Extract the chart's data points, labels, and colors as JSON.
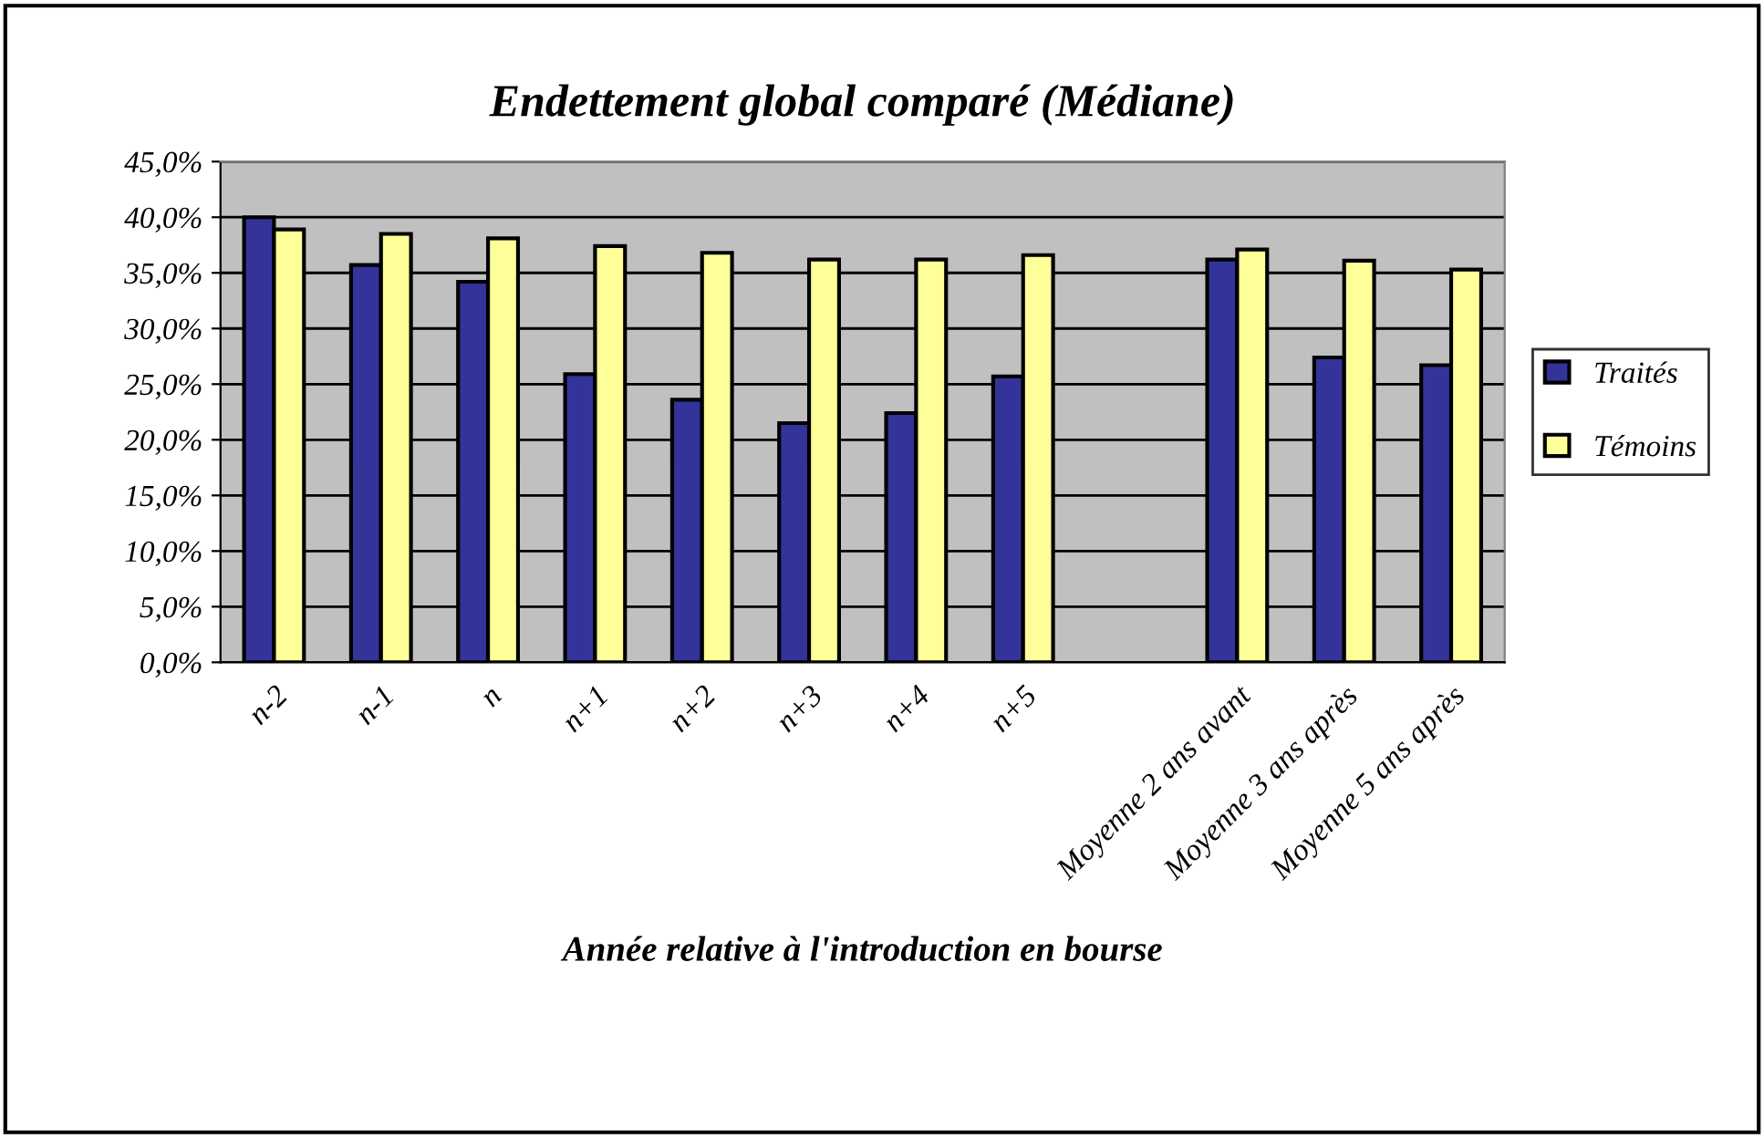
{
  "chart_data": {
    "type": "bar",
    "title": "Endettement global comparé (Médiane)",
    "xlabel": "Année relative à l'introduction en bourse",
    "categories": [
      "n-2",
      "n-1",
      "n",
      "n+1",
      "n+2",
      "n+3",
      "n+4",
      "n+5",
      null,
      "Moyenne 2 ans avant",
      "Moyenne 3 ans après",
      "Moyenne 5 ans après"
    ],
    "series": [
      {
        "name": "Traités",
        "color": "#333399",
        "values": [
          40.0,
          35.7,
          34.2,
          25.9,
          23.6,
          21.5,
          22.4,
          25.7,
          null,
          36.2,
          27.4,
          26.7
        ]
      },
      {
        "name": "Témoins",
        "color": "#ffff99",
        "values": [
          38.9,
          38.5,
          38.1,
          37.4,
          36.8,
          36.2,
          36.2,
          36.6,
          null,
          37.1,
          36.1,
          35.3
        ]
      }
    ],
    "ylim": [
      0,
      45
    ],
    "yticks": [
      {
        "value": 0,
        "label": "0,0%"
      },
      {
        "value": 5,
        "label": "5,0%"
      },
      {
        "value": 10,
        "label": "10,0%"
      },
      {
        "value": 15,
        "label": "15,0%"
      },
      {
        "value": 20,
        "label": "20,0%"
      },
      {
        "value": 25,
        "label": "25,0%"
      },
      {
        "value": 30,
        "label": "30,0%"
      },
      {
        "value": 35,
        "label": "35,0%"
      },
      {
        "value": 40,
        "label": "40,0%"
      },
      {
        "value": 45,
        "label": "45,0%"
      }
    ],
    "grid": "y",
    "legend": "right"
  }
}
